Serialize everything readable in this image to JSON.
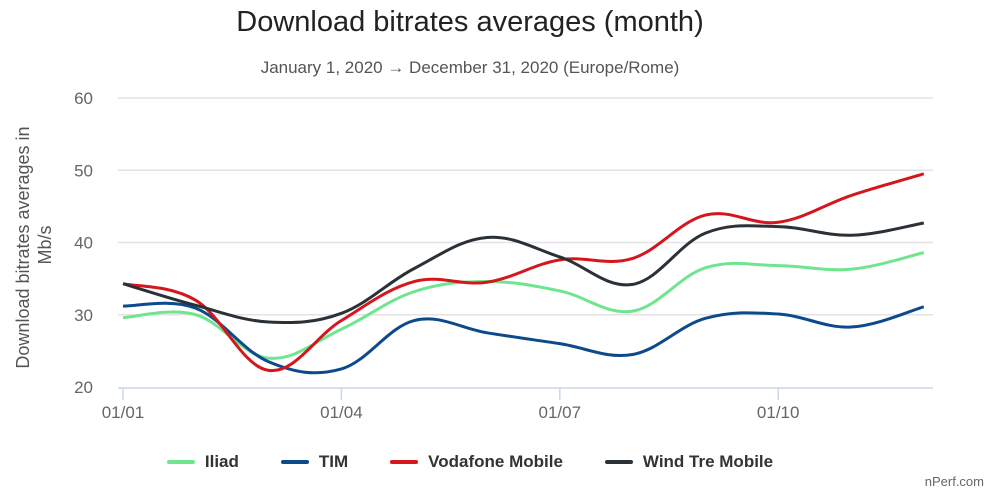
{
  "chart_data": {
    "type": "line",
    "title": "Download bitrates averages (month)",
    "subtitle": "January 1, 2020 → December 31, 2020 (Europe/Rome)",
    "xlabel": "",
    "ylabel": "Download bitrates averages in Mb/s",
    "ylabel_lines": [
      "Download bitrates averages in",
      "Mb/s"
    ],
    "x": [
      "01/01",
      "01/02",
      "01/03",
      "01/04",
      "01/05",
      "01/06",
      "01/07",
      "01/08",
      "01/09",
      "01/10",
      "01/11",
      "01/12"
    ],
    "x_tick_labels": [
      "01/01",
      "01/04",
      "01/07",
      "01/10"
    ],
    "y_ticks": [
      20,
      30,
      40,
      50,
      60
    ],
    "ylim": [
      20,
      60
    ],
    "grid": true,
    "legend_position": "bottom",
    "series": [
      {
        "name": "Iliad",
        "color": "#6fe58f",
        "values": [
          29.6,
          30.0,
          24.0,
          28.0,
          33.2,
          34.6,
          33.3,
          30.5,
          36.5,
          36.8,
          36.3,
          38.6
        ]
      },
      {
        "name": "TIM",
        "color": "#0c4a8c",
        "values": [
          31.2,
          30.9,
          23.5,
          22.5,
          29.2,
          27.5,
          26.0,
          24.5,
          29.5,
          30.1,
          28.3,
          31.1
        ]
      },
      {
        "name": "Vodafone Mobile",
        "color": "#d5161c",
        "values": [
          34.3,
          32.0,
          22.3,
          29.2,
          34.6,
          34.5,
          37.6,
          37.8,
          43.8,
          42.8,
          46.5,
          49.5
        ]
      },
      {
        "name": "Wind Tre Mobile",
        "color": "#2a3137",
        "values": [
          34.3,
          31.3,
          29.0,
          30.2,
          36.4,
          40.7,
          38.0,
          34.2,
          41.3,
          42.2,
          41.0,
          42.7
        ]
      }
    ]
  },
  "credit": "nPerf.com"
}
